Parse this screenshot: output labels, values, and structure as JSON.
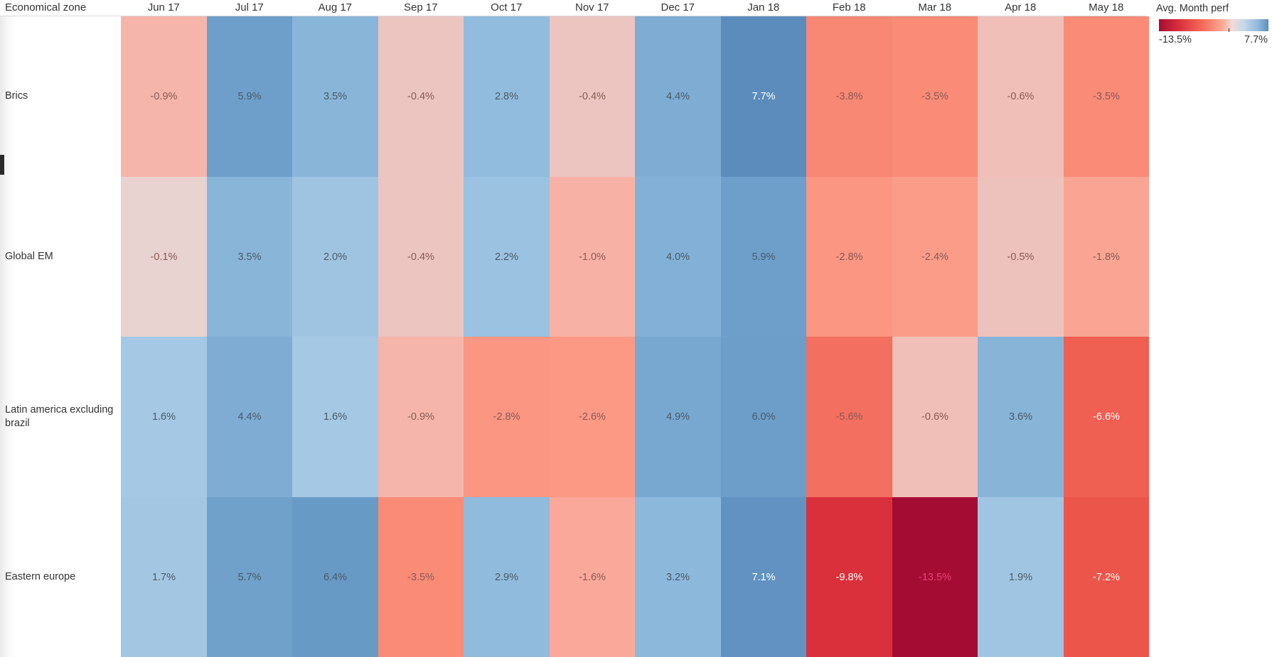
{
  "header": {
    "title": "Economical zone"
  },
  "legend": {
    "title": "Avg. Month perf",
    "min_label": "-13.5%",
    "max_label": "7.7%"
  },
  "chart_data": {
    "type": "heatmap",
    "x": [
      "Jun 17",
      "Jul 17",
      "Aug 17",
      "Sep 17",
      "Oct 17",
      "Nov 17",
      "Dec 17",
      "Jan 18",
      "Feb 18",
      "Mar 18",
      "Apr 18",
      "May 18"
    ],
    "y": [
      "Brics",
      "Global EM",
      "Latin america excluding brazil",
      "Eastern europe"
    ],
    "values": [
      [
        -0.9,
        5.9,
        3.5,
        -0.4,
        2.8,
        -0.4,
        4.4,
        7.7,
        -3.8,
        -3.5,
        -0.6,
        -3.5
      ],
      [
        -0.1,
        3.5,
        2.0,
        -0.4,
        2.2,
        -1.0,
        4.0,
        5.9,
        -2.8,
        -2.4,
        -0.5,
        -1.8
      ],
      [
        1.6,
        4.4,
        1.6,
        -0.9,
        -2.8,
        -2.6,
        4.9,
        6.0,
        -5.6,
        -0.6,
        3.6,
        -6.6
      ],
      [
        1.7,
        5.7,
        6.4,
        -3.5,
        2.9,
        -1.6,
        3.2,
        7.1,
        -9.8,
        -13.5,
        1.9,
        -7.2
      ]
    ],
    "labels": [
      [
        "-0.9%",
        "5.9%",
        "3.5%",
        "-0.4%",
        "2.8%",
        "-0.4%",
        "4.4%",
        "7.7%",
        "-3.8%",
        "-3.5%",
        "-0.6%",
        "-3.5%"
      ],
      [
        "-0.1%",
        "3.5%",
        "2.0%",
        "-0.4%",
        "2.2%",
        "-1.0%",
        "4.0%",
        "5.9%",
        "-2.8%",
        "-2.4%",
        "-0.5%",
        "-1.8%"
      ],
      [
        "1.6%",
        "4.4%",
        "1.6%",
        "-0.9%",
        "-2.8%",
        "-2.6%",
        "4.9%",
        "6.0%",
        "-5.6%",
        "-0.6%",
        "3.6%",
        "-6.6%"
      ],
      [
        "1.7%",
        "5.7%",
        "6.4%",
        "-3.5%",
        "2.9%",
        "-1.6%",
        "3.2%",
        "7.1%",
        "-9.8%",
        "-13.5%",
        "1.9%",
        "-7.2%"
      ]
    ],
    "color_range": [
      -13.5,
      7.7
    ],
    "colors": {
      "max_negative": "#a50c34",
      "near_zero": "#f2dcd8",
      "max_positive": "#5b8cbc"
    },
    "legend_position": "top-right"
  }
}
